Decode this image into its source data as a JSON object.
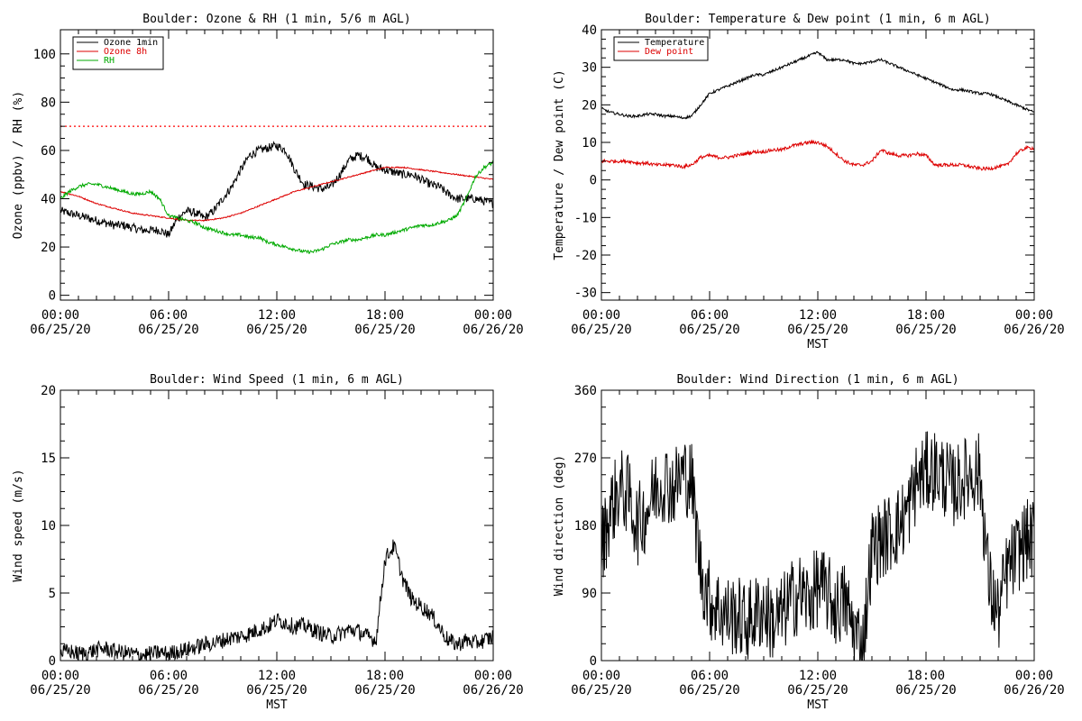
{
  "chart_data": [
    {
      "id": "ozone",
      "type": "line",
      "title": "Boulder: Ozone & RH (1 min, 5/6 m AGL)",
      "xlabel": "",
      "ylabel": "Ozone (ppbv) / RH (%)",
      "xlim": [
        0,
        24
      ],
      "ylim": [
        -2,
        110
      ],
      "xticks": [
        {
          "v": 0,
          "time": "00:00",
          "date": "06/25/20"
        },
        {
          "v": 6,
          "time": "06:00",
          "date": "06/25/20"
        },
        {
          "v": 12,
          "time": "12:00",
          "date": "06/25/20"
        },
        {
          "v": 18,
          "time": "18:00",
          "date": "06/25/20"
        },
        {
          "v": 24,
          "time": "00:00",
          "date": "06/26/20"
        }
      ],
      "yticks": [
        0,
        20,
        40,
        60,
        80,
        100
      ],
      "legend": "top-left",
      "reference_line": {
        "y": 70,
        "color": "#ff0000",
        "style": "dotted"
      },
      "series": [
        {
          "name": "Ozone 1min",
          "color": "#000000",
          "noise": 1.8,
          "x": [
            0,
            0.5,
            1,
            1.5,
            2,
            2.5,
            3,
            3.5,
            4,
            4.5,
            5,
            5.5,
            6,
            6.5,
            7,
            7.5,
            8,
            8.5,
            9,
            9.5,
            10,
            10.5,
            11,
            11.5,
            12,
            12.5,
            13,
            13.5,
            14,
            14.5,
            15,
            15.5,
            16,
            16.5,
            17,
            17.5,
            18,
            18.5,
            19,
            19.5,
            20,
            20.5,
            21,
            21.5,
            22,
            22.5,
            23,
            23.5,
            24
          ],
          "y": [
            35,
            34,
            33,
            32,
            31,
            30,
            29,
            29,
            28,
            27,
            27,
            27,
            25,
            32,
            35,
            34,
            32,
            35,
            40,
            45,
            52,
            58,
            60,
            61,
            62,
            60,
            52,
            46,
            45,
            44,
            45,
            50,
            56,
            58,
            57,
            53,
            52,
            51,
            50,
            50,
            48,
            46,
            45,
            42,
            40,
            40,
            40,
            39,
            38
          ]
        },
        {
          "name": "Ozone 8h",
          "color": "#dd0000",
          "noise": 0.25,
          "x": [
            0,
            1,
            2,
            3,
            4,
            5,
            6,
            7,
            8,
            9,
            10,
            11,
            12,
            13,
            14,
            15,
            16,
            17,
            18,
            19,
            20,
            21,
            22,
            23,
            24
          ],
          "y": [
            43,
            41,
            38,
            36,
            34,
            33,
            32,
            31,
            31,
            32,
            34,
            37,
            40,
            43,
            45,
            47,
            49,
            51,
            53,
            53,
            52,
            51,
            50,
            49,
            48
          ]
        },
        {
          "name": "RH",
          "color": "#00aa00",
          "noise": 0.7,
          "x": [
            0,
            0.5,
            1,
            1.5,
            2,
            2.5,
            3,
            3.5,
            4,
            4.5,
            5,
            5.5,
            6,
            6.5,
            7,
            7.5,
            8,
            8.5,
            9,
            9.5,
            10,
            10.5,
            11,
            11.5,
            12,
            12.5,
            13,
            13.5,
            14,
            14.5,
            15,
            15.5,
            16,
            16.5,
            17,
            17.5,
            18,
            18.5,
            19,
            19.5,
            20,
            20.5,
            21,
            21.5,
            22,
            22.5,
            23,
            23.5,
            24
          ],
          "y": [
            40,
            43,
            45,
            46,
            46,
            45,
            44,
            43,
            42,
            42,
            43,
            40,
            33,
            32,
            31,
            30,
            28,
            27,
            26,
            25,
            25,
            24,
            24,
            22,
            21,
            20,
            19,
            18,
            18,
            19,
            21,
            22,
            23,
            23,
            24,
            25,
            25,
            26,
            27,
            28,
            29,
            29,
            30,
            31,
            33,
            40,
            49,
            53,
            55
          ]
        }
      ]
    },
    {
      "id": "temp",
      "type": "line",
      "title": "Boulder: Temperature & Dew point (1 min, 6 m AGL)",
      "xlabel": "MST",
      "ylabel": "Temperature / Dew point (C)",
      "xlim": [
        0,
        24
      ],
      "ylim": [
        -32,
        40
      ],
      "xticks": [
        {
          "v": 0,
          "time": "00:00",
          "date": "06/25/20"
        },
        {
          "v": 6,
          "time": "06:00",
          "date": "06/25/20"
        },
        {
          "v": 12,
          "time": "12:00",
          "date": "06/25/20"
        },
        {
          "v": 18,
          "time": "18:00",
          "date": "06/25/20"
        },
        {
          "v": 24,
          "time": "00:00",
          "date": "06/26/20"
        }
      ],
      "yticks": [
        -30,
        -20,
        -10,
        0,
        10,
        20,
        30,
        40
      ],
      "legend": "top-left",
      "series": [
        {
          "name": "Temperature",
          "color": "#000000",
          "noise": 0.35,
          "x": [
            0,
            0.5,
            1,
            1.5,
            2,
            2.5,
            3,
            3.5,
            4,
            4.5,
            5,
            5.5,
            6,
            6.5,
            7,
            7.5,
            8,
            8.5,
            9,
            9.5,
            10,
            10.5,
            11,
            11.5,
            12,
            12.5,
            13,
            13.5,
            14,
            14.5,
            15,
            15.5,
            16,
            16.5,
            17,
            17.5,
            18,
            18.5,
            19,
            19.5,
            20,
            20.5,
            21,
            21.5,
            22,
            22.5,
            23,
            23.5,
            24
          ],
          "y": [
            19,
            18,
            17.5,
            17,
            17,
            17.5,
            17.5,
            17,
            17,
            16.5,
            17,
            20,
            23,
            24,
            25,
            26,
            27,
            28,
            28,
            29,
            30,
            31,
            32,
            33,
            34,
            32,
            32,
            32,
            31,
            31,
            31.5,
            32,
            31,
            30,
            29,
            28,
            27,
            26,
            25,
            24,
            24,
            23.5,
            23,
            23,
            22,
            21,
            20,
            19,
            18
          ]
        },
        {
          "name": "Dew point",
          "color": "#dd0000",
          "noise": 0.45,
          "x": [
            0,
            0.5,
            1,
            1.5,
            2,
            2.5,
            3,
            3.5,
            4,
            4.5,
            5,
            5.5,
            6,
            6.5,
            7,
            7.5,
            8,
            8.5,
            9,
            9.5,
            10,
            10.5,
            11,
            11.5,
            12,
            12.5,
            13,
            13.5,
            14,
            14.5,
            15,
            15.5,
            16,
            16.5,
            17,
            17.5,
            18,
            18.5,
            19,
            19.5,
            20,
            20.5,
            21,
            21.5,
            22,
            22.5,
            23,
            23.5,
            24
          ],
          "y": [
            5,
            5,
            5,
            5,
            4.5,
            4.5,
            4,
            4,
            4,
            3.5,
            4,
            6,
            6.5,
            6,
            6,
            6.5,
            7,
            7.5,
            7.5,
            8,
            8,
            9,
            9.5,
            10,
            10,
            9,
            7,
            5,
            4,
            4,
            5,
            8,
            7,
            6.5,
            6.5,
            7,
            6.5,
            4,
            4,
            4,
            4,
            3.5,
            3,
            3,
            3.5,
            4,
            7,
            8.5,
            8.5
          ]
        }
      ]
    },
    {
      "id": "wspd",
      "type": "line",
      "title": "Boulder: Wind Speed (1 min, 6 m AGL)",
      "xlabel": "MST",
      "ylabel": "Wind speed (m/s)",
      "xlim": [
        0,
        24
      ],
      "ylim": [
        0,
        20
      ],
      "xticks": [
        {
          "v": 0,
          "time": "00:00",
          "date": "06/25/20"
        },
        {
          "v": 6,
          "time": "06:00",
          "date": "06/25/20"
        },
        {
          "v": 12,
          "time": "12:00",
          "date": "06/25/20"
        },
        {
          "v": 18,
          "time": "18:00",
          "date": "06/25/20"
        },
        {
          "v": 24,
          "time": "00:00",
          "date": "06/26/20"
        }
      ],
      "yticks": [
        0,
        5,
        10,
        15,
        20
      ],
      "series": [
        {
          "name": "",
          "color": "#000000",
          "noise": 0.6,
          "x": [
            0,
            0.5,
            1,
            1.5,
            2,
            2.5,
            3,
            3.5,
            4,
            4.5,
            5,
            5.5,
            6,
            6.5,
            7,
            7.5,
            8,
            8.5,
            9,
            9.5,
            10,
            10.5,
            11,
            11.5,
            12,
            12.5,
            13,
            13.5,
            14,
            14.5,
            15,
            15.5,
            16,
            16.5,
            17,
            17.5,
            18,
            18.5,
            19,
            19.5,
            20,
            20.5,
            21,
            21.5,
            22,
            22.5,
            23,
            23.5,
            24
          ],
          "y": [
            0.6,
            0.7,
            0.5,
            0.6,
            0.8,
            0.9,
            0.7,
            0.6,
            0.5,
            0.4,
            0.5,
            0.6,
            0.5,
            0.7,
            0.8,
            1.0,
            1.2,
            1.3,
            1.5,
            1.7,
            1.8,
            2.0,
            2.3,
            2.5,
            3.0,
            2.8,
            2.5,
            2.6,
            2.3,
            2.0,
            1.8,
            2.0,
            2.3,
            2.2,
            1.8,
            1.5,
            7.5,
            8.5,
            6.0,
            4.5,
            4.0,
            3.5,
            2.5,
            1.5,
            1.2,
            1.5,
            1.3,
            1.5,
            1.8
          ]
        }
      ]
    },
    {
      "id": "wdir",
      "type": "line",
      "title": "Boulder: Wind Direction (1 min, 6 m AGL)",
      "xlabel": "MST",
      "ylabel": "Wind direction (deg)",
      "xlim": [
        0,
        24
      ],
      "ylim": [
        0,
        360
      ],
      "xticks": [
        {
          "v": 0,
          "time": "00:00",
          "date": "06/25/20"
        },
        {
          "v": 6,
          "time": "06:00",
          "date": "06/25/20"
        },
        {
          "v": 12,
          "time": "12:00",
          "date": "06/25/20"
        },
        {
          "v": 18,
          "time": "18:00",
          "date": "06/25/20"
        },
        {
          "v": 24,
          "time": "00:00",
          "date": "06/26/20"
        }
      ],
      "yticks": [
        0,
        90,
        180,
        270,
        360
      ],
      "series": [
        {
          "name": "",
          "color": "#000000",
          "noise": 55,
          "x": [
            0,
            0.5,
            1,
            1.5,
            2,
            2.5,
            3,
            3.5,
            4,
            4.5,
            5,
            5.5,
            6,
            6.5,
            7,
            7.5,
            8,
            8.5,
            9,
            9.5,
            10,
            10.5,
            11,
            11.5,
            12,
            12.5,
            13,
            13.5,
            14,
            14.5,
            15,
            15.5,
            16,
            16.5,
            17,
            17.5,
            18,
            18.5,
            19,
            19.5,
            20,
            20.5,
            21,
            21.5,
            22,
            22.5,
            23,
            23.5,
            24
          ],
          "y": [
            150,
            200,
            230,
            220,
            180,
            200,
            230,
            240,
            230,
            250,
            240,
            120,
            80,
            70,
            60,
            60,
            50,
            60,
            70,
            50,
            60,
            80,
            90,
            80,
            100,
            90,
            70,
            80,
            40,
            20,
            150,
            160,
            170,
            180,
            200,
            240,
            250,
            255,
            245,
            230,
            240,
            250,
            250,
            100,
            60,
            120,
            140,
            160,
            160
          ]
        }
      ]
    }
  ]
}
